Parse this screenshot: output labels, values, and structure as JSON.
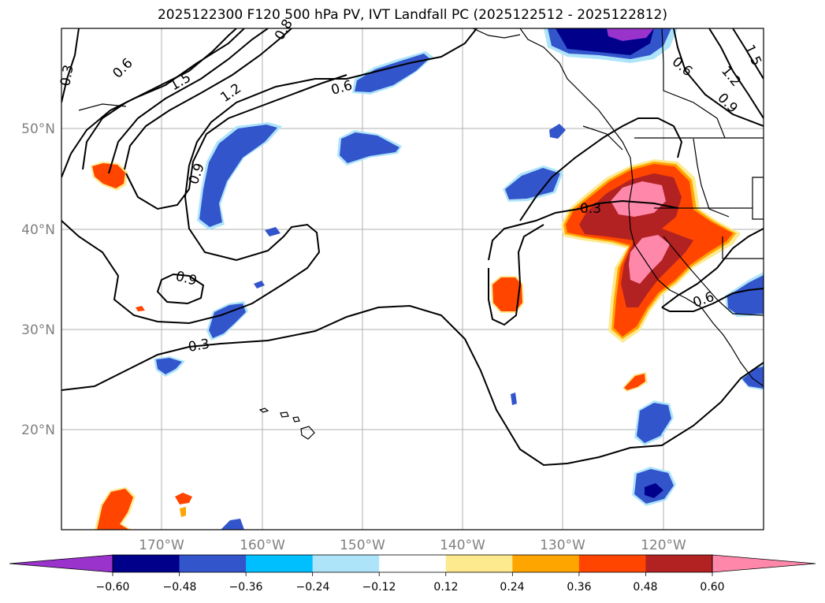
{
  "title": "2025122300 F120 500 hPa PV, IVT Landfall PC (2025122512 - 2025122812)",
  "lon_ticks": [
    "170°W",
    "160°W",
    "150°W",
    "140°W",
    "130°W",
    "120°W"
  ],
  "lat_ticks": [
    "50°N",
    "40°N",
    "30°N",
    "20°N"
  ],
  "colorbar": {
    "labels": [
      "−0.60",
      "−0.48",
      "−0.36",
      "−0.24",
      "−0.12",
      "0.12",
      "0.24",
      "0.36",
      "0.48",
      "0.60"
    ],
    "colors": [
      "#9933cc",
      "#00008b",
      "#3355cc",
      "#00bfff",
      "#aee4fa",
      "#ffffff",
      "#fde98e",
      "#ffa500",
      "#ff4500",
      "#b22222",
      "#ff88aa"
    ]
  },
  "contour_labels": {
    "c1": "0.3",
    "c2": "0.6",
    "c3": "1.5",
    "c4": "1.2",
    "c5": "0.9",
    "c6": "0.8",
    "c7": "0.6",
    "c8": "0.9",
    "c9": "0.3",
    "c10": "0.3",
    "c11": "0.6",
    "c12": "1.2",
    "c13": "0.9",
    "c14": "1.5",
    "c15": "0.6"
  }
}
